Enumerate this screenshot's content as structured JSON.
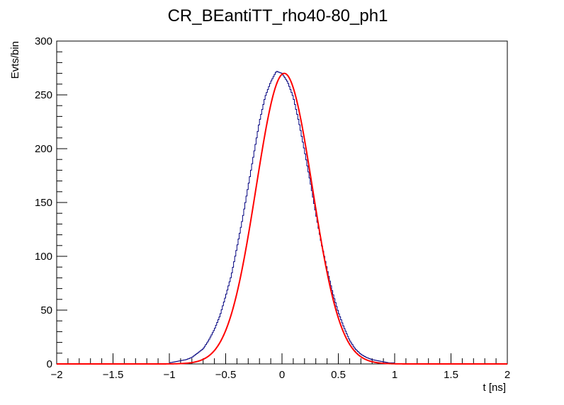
{
  "chart_data": {
    "type": "line",
    "title": "CR_BEantiTT_rho40-80_ph1",
    "xlabel": "t [ns]",
    "ylabel": "Evts/bin",
    "xlim": [
      -2,
      2
    ],
    "ylim": [
      0,
      300
    ],
    "x_ticks": [
      -2,
      -1.5,
      -1,
      -0.5,
      0,
      0.5,
      1,
      1.5,
      2
    ],
    "x_tick_labels": [
      "−2",
      "−1.5",
      "−1",
      "−0.5",
      "0",
      "0.5",
      "1",
      "1.5",
      "2"
    ],
    "y_ticks": [
      0,
      50,
      100,
      150,
      200,
      250,
      300
    ],
    "y_tick_labels": [
      "0",
      "50",
      "100",
      "150",
      "200",
      "250",
      "300"
    ],
    "grid": false,
    "series": [
      {
        "kind": "histogram-step",
        "color": "#00007f",
        "bin_width": 0.01,
        "bin_low_edges": [
          -1.0,
          -0.95,
          -0.9,
          -0.85,
          -0.8,
          -0.75,
          -0.7,
          -0.65,
          -0.6,
          -0.55,
          -0.5,
          -0.45,
          -0.4,
          -0.35,
          -0.3,
          -0.25,
          -0.2,
          -0.15,
          -0.1,
          -0.05,
          0.0,
          0.05,
          0.1,
          0.15,
          0.2,
          0.25,
          0.3,
          0.35,
          0.4,
          0.45,
          0.5,
          0.55,
          0.6,
          0.65,
          0.7,
          0.75,
          0.8,
          0.85,
          0.9,
          0.95
        ],
        "values": [
          1,
          2,
          3,
          4,
          6,
          10,
          14,
          22,
          32,
          45,
          63,
          82,
          108,
          135,
          165,
          195,
          225,
          248,
          262,
          272,
          270,
          262,
          248,
          225,
          198,
          170,
          140,
          112,
          88,
          66,
          48,
          34,
          22,
          14,
          9,
          6,
          4,
          3,
          2,
          1
        ]
      },
      {
        "kind": "fit-curve",
        "function": "gaus",
        "color": "#ff0000",
        "amplitude": 270,
        "mean": 0.02,
        "sigma": 0.25
      }
    ]
  }
}
